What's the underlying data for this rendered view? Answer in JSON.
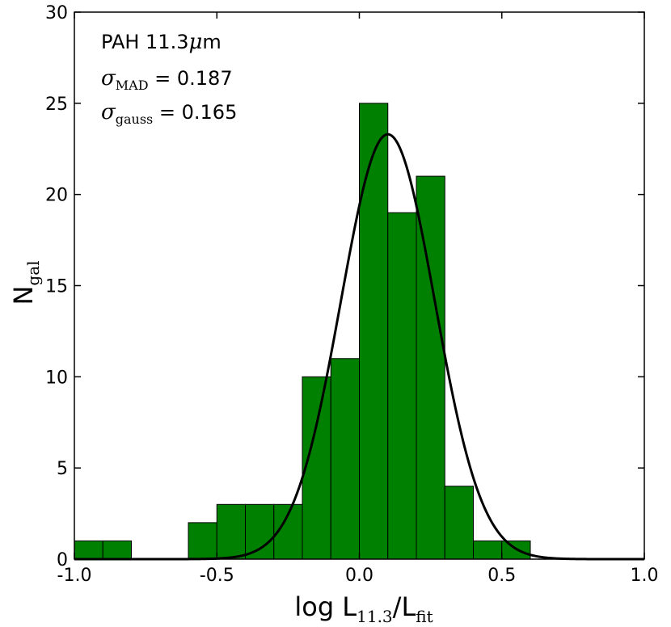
{
  "chart_data": {
    "type": "bar",
    "bin_edges": [
      -1.0,
      -0.9,
      -0.8,
      -0.7,
      -0.6,
      -0.5,
      -0.4,
      -0.3,
      -0.2,
      -0.1,
      0.0,
      0.1,
      0.2,
      0.3,
      0.4,
      0.5,
      0.6
    ],
    "counts": [
      1,
      1,
      0,
      0,
      2,
      3,
      3,
      3,
      10,
      11,
      25,
      19,
      21,
      4,
      1,
      1
    ],
    "bar_color": "#008000",
    "curve_color": "#000000",
    "gaussian_fit": {
      "amplitude": 23.3,
      "mean": 0.1,
      "sigma": 0.165
    },
    "xlim": [
      -1.0,
      1.0
    ],
    "ylim": [
      0,
      30
    ],
    "xticks": [
      "-1.0",
      "-0.5",
      "0.0",
      "0.5",
      "1.0"
    ],
    "yticks": [
      "0",
      "5",
      "10",
      "15",
      "20",
      "25",
      "30"
    ],
    "xlabel": {
      "main": "log L",
      "sub1": "11.3",
      "mid": "/L",
      "sub2": "fit"
    },
    "ylabel": {
      "main": "N",
      "sub": "gal"
    },
    "annotations": {
      "title": "PAH 11.3",
      "unit_mu": "μ",
      "unit_m": "m",
      "sigma_symbol": "σ",
      "mad_sub": "MAD",
      "mad_value": " = 0.187",
      "gauss_sub": "gauss",
      "gauss_value": " = 0.165"
    }
  }
}
